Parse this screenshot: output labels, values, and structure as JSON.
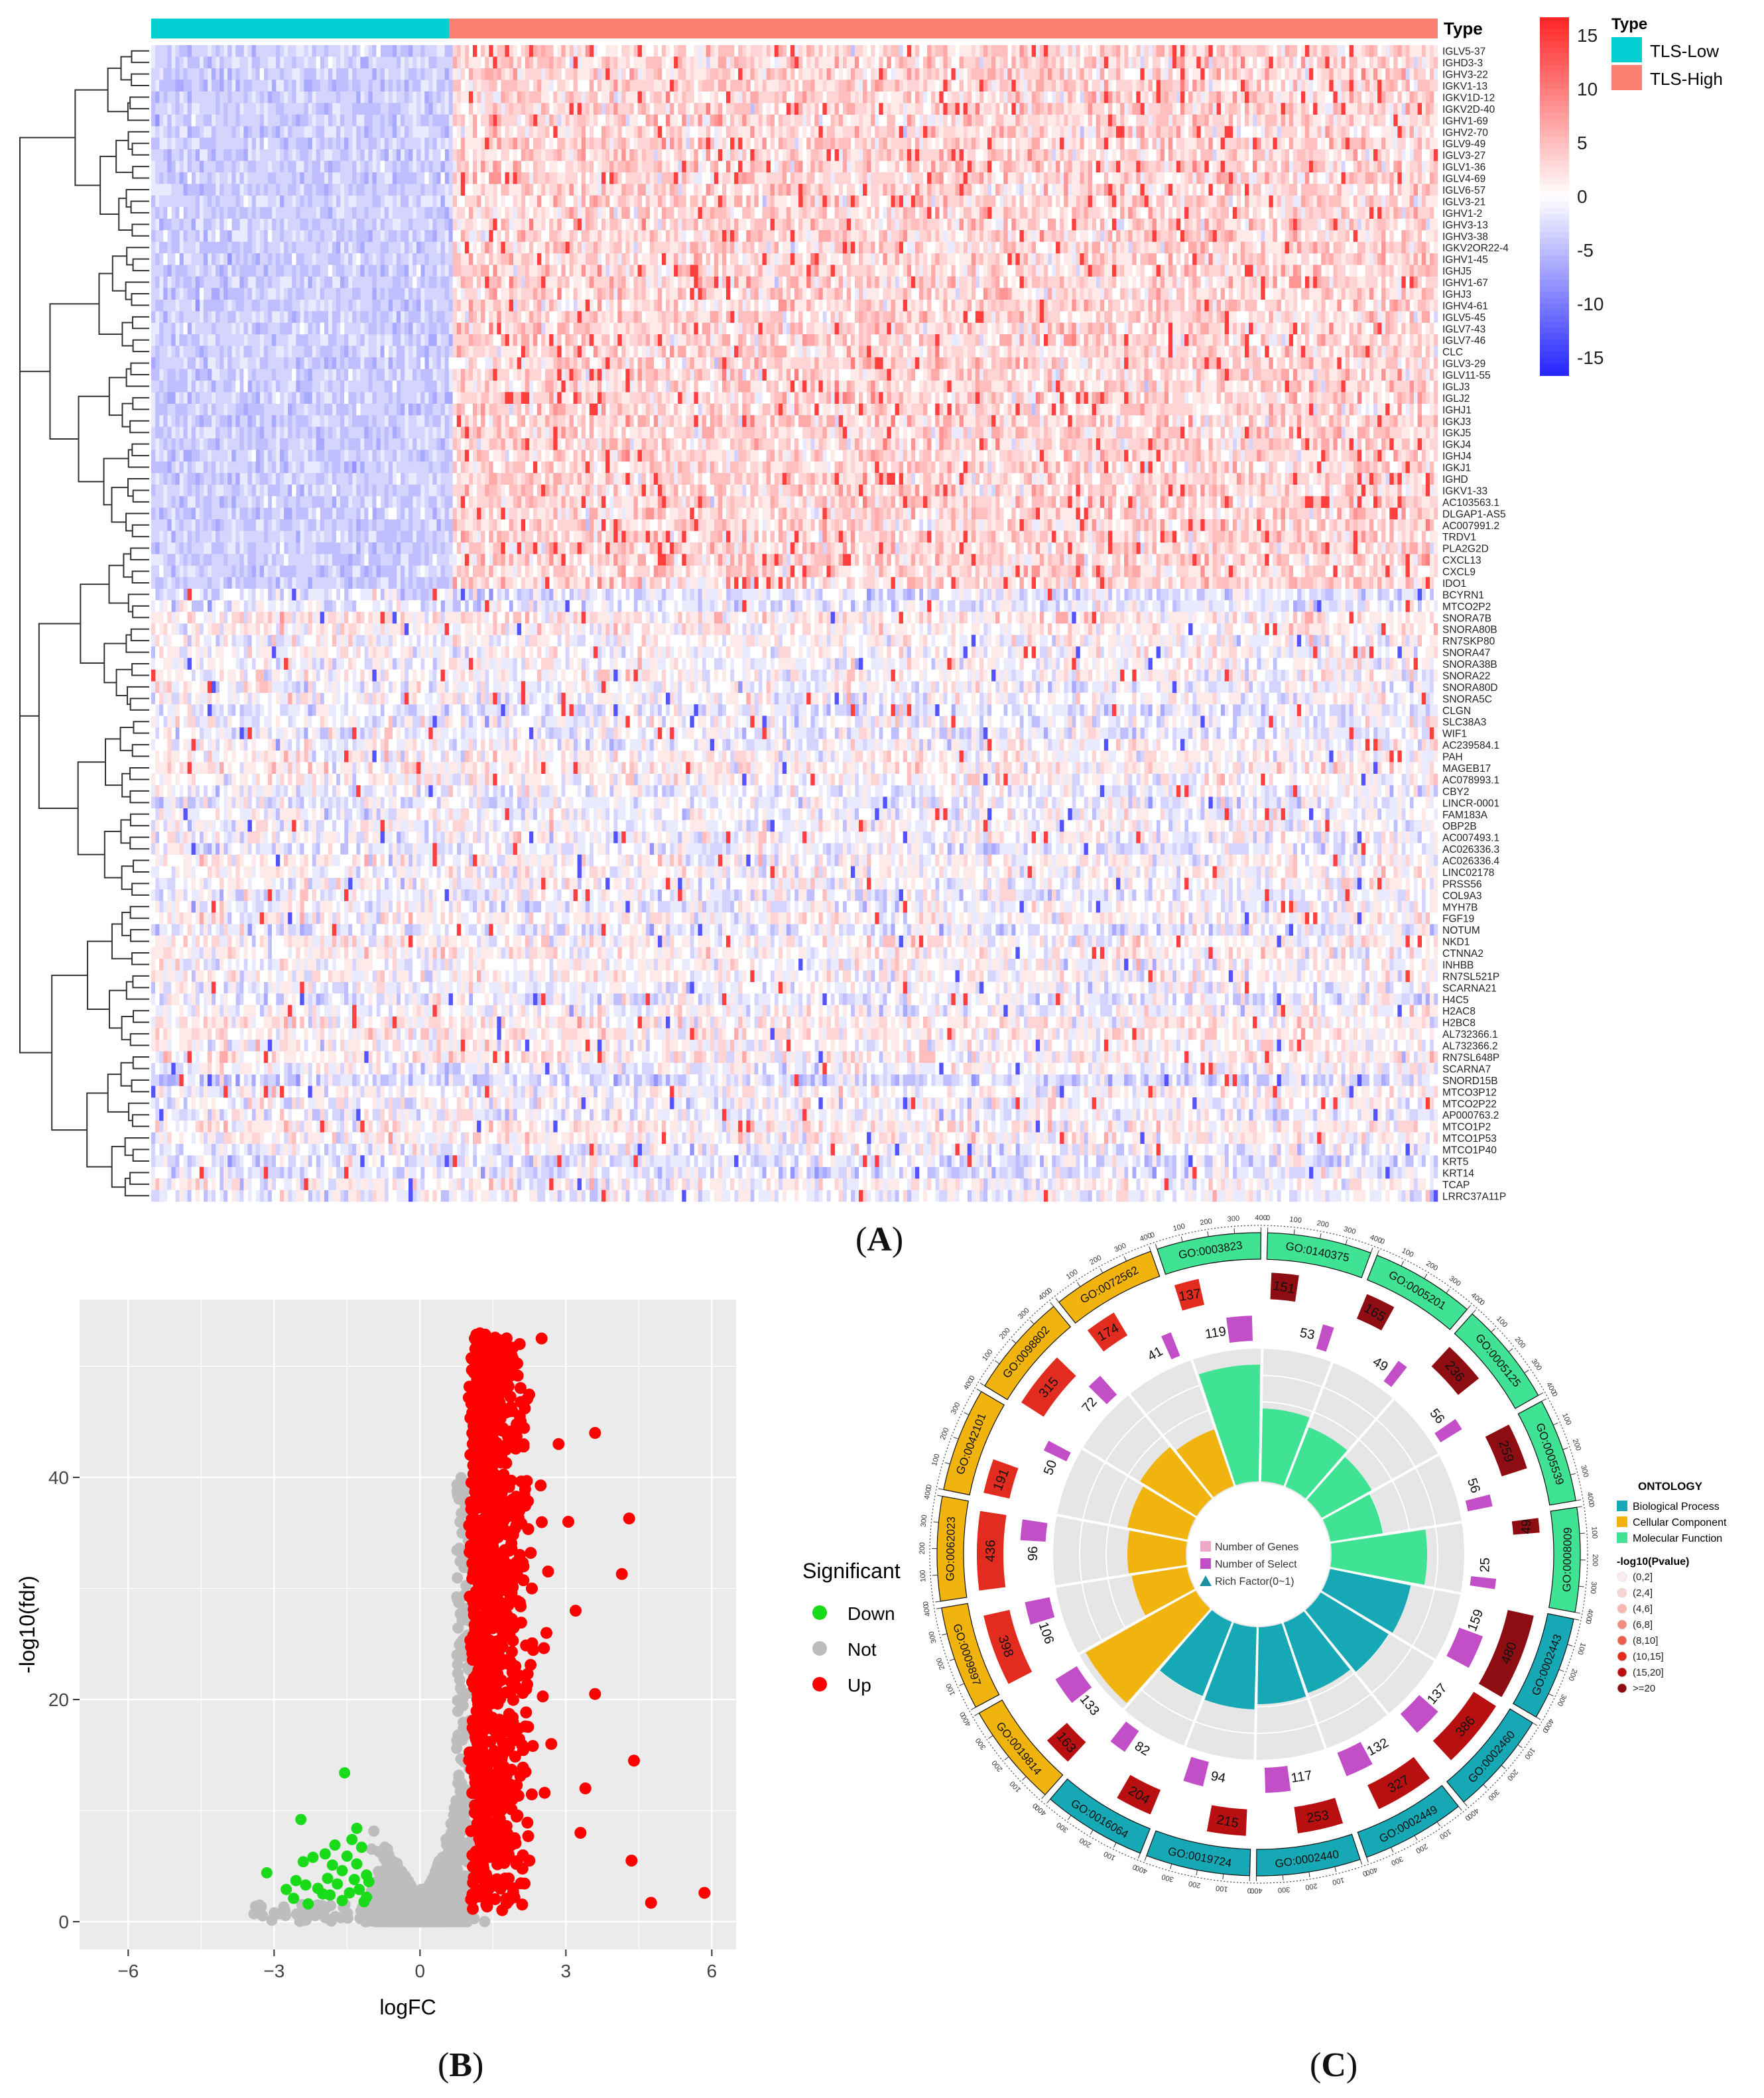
{
  "panels": {
    "a": {
      "label": "A"
    },
    "b": {
      "label": "B"
    },
    "c": {
      "label": "C"
    }
  },
  "chart_data": [
    {
      "id": "heatmap",
      "type": "heatmap",
      "title": "",
      "annotation_title": "Type",
      "legend_title": "Type",
      "groups": [
        {
          "name": "TLS-Low",
          "color": "#00CED1",
          "n_samples": 90
        },
        {
          "name": "TLS-High",
          "color": "#FA8072",
          "n_samples": 300
        }
      ],
      "color_scale": {
        "min": -15,
        "max": 15,
        "low": "#0000FF",
        "mid": "#FFFFFF",
        "high": "#FF0000",
        "ticks": [
          "15",
          "10",
          "5",
          "0",
          "-5",
          "-10",
          "-15"
        ]
      },
      "genes": [
        "IGLV5-37",
        "IGHD3-3",
        "IGHV3-22",
        "IGKV1-13",
        "IGKV1D-12",
        "IGKV2D-40",
        "IGHV1-69",
        "IGHV2-70",
        "IGLV9-49",
        "IGLV3-27",
        "IGLV1-36",
        "IGLV4-69",
        "IGLV6-57",
        "IGLV3-21",
        "IGHV1-2",
        "IGHV3-13",
        "IGHV3-38",
        "IGKV2OR22-4",
        "IGHV1-45",
        "IGHJ5",
        "IGHV1-67",
        "IGHJ3",
        "IGHV4-61",
        "IGLV5-45",
        "IGLV7-43",
        "IGLV7-46",
        "CLC",
        "IGLV3-29",
        "IGLV11-55",
        "IGLJ3",
        "IGLJ2",
        "IGHJ1",
        "IGKJ3",
        "IGKJ5",
        "IGKJ4",
        "IGHJ4",
        "IGKJ1",
        "IGHD",
        "IGKV1-33",
        "AC103563.1",
        "DLGAP1-AS5",
        "AC007991.2",
        "TRDV1",
        "PLA2G2D",
        "CXCL13",
        "CXCL9",
        "IDO1",
        "BCYRN1",
        "MTCO2P2",
        "SNORA7B",
        "SNORA80B",
        "RN7SKP80",
        "SNORA47",
        "SNORA38B",
        "SNORA22",
        "SNORA80D",
        "SNORA5C",
        "CLGN",
        "SLC38A3",
        "WIF1",
        "AC239584.1",
        "PAH",
        "MAGEB17",
        "AC078993.1",
        "CBY2",
        "LINCR-0001",
        "FAM183A",
        "OBP2B",
        "AC007493.1",
        "AC026336.3",
        "AC026336.4",
        "LINC02178",
        "PRSS56",
        "COL9A3",
        "MYH7B",
        "FGF19",
        "NOTUM",
        "NKD1",
        "CTNNA2",
        "INHBB",
        "RN7SL521P",
        "SCARNA21",
        "H4C5",
        "H2AC8",
        "H2BC8",
        "AL732366.1",
        "AL732366.2",
        "RN7SL648P",
        "SCARNA7",
        "SNORD15B",
        "MTCO3P12",
        "MTCO2P22",
        "AP000763.2",
        "MTCO1P2",
        "MTCO1P53",
        "MTCO1P40",
        "KRT5",
        "KRT14",
        "TCAP",
        "LRRC37A11P"
      ]
    },
    {
      "id": "volcano",
      "type": "scatter",
      "title": "",
      "xlabel": "logFC",
      "ylabel": "-log10(fdr)",
      "xlim": [
        -7,
        6.5
      ],
      "ylim": [
        -2.5,
        56
      ],
      "xticks": [
        -6,
        -3,
        0,
        3,
        6
      ],
      "yticks": [
        0,
        20,
        40
      ],
      "legend_title": "Significant",
      "legend_position": "right",
      "series": [
        {
          "name": "Down",
          "color": "#1ADB1A",
          "points": [
            [
              -3.15,
              4.4
            ],
            [
              -2.4,
              5.4
            ],
            [
              -2.45,
              9.2
            ],
            [
              -1.55,
              13.4
            ],
            [
              -1.3,
              8.4
            ],
            [
              -2.3,
              1.6
            ],
            [
              -2.6,
              2.1
            ],
            [
              -2.1,
              3.0
            ],
            [
              -1.9,
              3.9
            ],
            [
              -1.8,
              5.1
            ],
            [
              -1.7,
              3.4
            ],
            [
              -1.5,
              5.9
            ],
            [
              -1.35,
              3.8
            ],
            [
              -1.2,
              6.7
            ],
            [
              -1.1,
              4.2
            ],
            [
              -2.2,
              5.8
            ],
            [
              -2.0,
              2.5
            ],
            [
              -1.6,
              1.9
            ],
            [
              -1.45,
              2.6
            ],
            [
              -1.25,
              2.9
            ],
            [
              -1.15,
              1.8
            ],
            [
              -2.35,
              3.3
            ],
            [
              -1.95,
              6.1
            ],
            [
              -1.75,
              6.9
            ],
            [
              -1.4,
              7.4
            ],
            [
              -1.1,
              2.2
            ],
            [
              -1.6,
              4.6
            ],
            [
              -1.85,
              2.4
            ],
            [
              -2.55,
              3.7
            ],
            [
              -1.3,
              5.2
            ],
            [
              -1.05,
              3.6
            ],
            [
              -2.75,
              2.9
            ]
          ]
        },
        {
          "name": "Not",
          "color": "#BDBDBD"
        },
        {
          "name": "Up",
          "color": "#FF0000",
          "points": [
            [
              2.5,
              52.5
            ],
            [
              2.05,
              52.0
            ],
            [
              3.6,
              44.0
            ],
            [
              4.3,
              36.3
            ],
            [
              4.15,
              31.3
            ],
            [
              4.4,
              14.5
            ],
            [
              4.35,
              5.5
            ],
            [
              4.75,
              1.7
            ],
            [
              5.85,
              2.6
            ],
            [
              3.6,
              20.5
            ],
            [
              3.4,
              12.0
            ],
            [
              3.2,
              28.0
            ],
            [
              3.05,
              36.0
            ],
            [
              2.85,
              43.0
            ],
            [
              2.7,
              16.0
            ],
            [
              2.25,
              5.5
            ],
            [
              1.65,
              48.5
            ],
            [
              1.25,
              22.0
            ],
            [
              1.05,
              2.0
            ],
            [
              1.9,
              38.0
            ],
            [
              2.3,
              30.0
            ],
            [
              1.55,
              33.0
            ],
            [
              2.6,
              26.0
            ],
            [
              3.3,
              8.0
            ]
          ]
        }
      ]
    },
    {
      "id": "go-circos",
      "type": "pie",
      "title": "",
      "legend_ontology_title": "ONTOLOGY",
      "ontology_categories": [
        {
          "name": "Biological Process",
          "color": "#16A8B4"
        },
        {
          "name": "Cellular Component",
          "color": "#F1B40E"
        },
        {
          "name": "Molecular Function",
          "color": "#3FE393"
        }
      ],
      "legend_pvalue_title": "-log10(Pvalue)",
      "pvalue_bins": [
        "(0,2]",
        "(2,4]",
        "(4,6]",
        "(6,8]",
        "(8,10]",
        "(10,15]",
        "(15,20]",
        ">=20"
      ],
      "pvalue_colors": [
        "#FBEDED",
        "#F6D4D2",
        "#F5B7AF",
        "#F08C80",
        "#EB5F50",
        "#E22C20",
        "#B80F10",
        "#8E0D12"
      ],
      "inner_legend": [
        "Number of Genes",
        "Number of Select",
        "Rich Factor(0~1)"
      ],
      "outer_ticks": [
        "0",
        "100",
        "200",
        "300",
        "400"
      ],
      "terms": [
        {
          "id": "GO:0140375",
          "ontology": "Molecular Function",
          "number_of_genes": "151",
          "number_of_select": "53",
          "rich_factor": 0.55
        },
        {
          "id": "GO:0005201",
          "ontology": "Molecular Function",
          "number_of_genes": "165",
          "number_of_select": "49",
          "rich_factor": 0.48
        },
        {
          "id": "GO:0005125",
          "ontology": "Molecular Function",
          "number_of_genes": "236",
          "number_of_select": "56",
          "rich_factor": 0.43
        },
        {
          "id": "GO:0005539",
          "ontology": "Molecular Function",
          "number_of_genes": "259",
          "number_of_select": "56",
          "rich_factor": 0.4
        },
        {
          "id": "GO:0008009",
          "ontology": "Molecular Function",
          "number_of_genes": "49",
          "number_of_select": "25",
          "rich_factor": 0.72
        },
        {
          "id": "GO:0002443",
          "ontology": "Biological Process",
          "number_of_genes": "480",
          "number_of_select": "159",
          "rich_factor": 0.62
        },
        {
          "id": "GO:0002460",
          "ontology": "Biological Process",
          "number_of_genes": "386",
          "number_of_select": "137",
          "rich_factor": 0.6
        },
        {
          "id": "GO:0002449",
          "ontology": "Biological Process",
          "number_of_genes": "327",
          "number_of_select": "132",
          "rich_factor": 0.56
        },
        {
          "id": "GO:0002440",
          "ontology": "Biological Process",
          "number_of_genes": "253",
          "number_of_select": "117",
          "rich_factor": 0.58
        },
        {
          "id": "GO:0019724",
          "ontology": "Biological Process",
          "number_of_genes": "215",
          "number_of_select": "94",
          "rich_factor": 0.62
        },
        {
          "id": "GO:0016064",
          "ontology": "Biological Process",
          "number_of_genes": "204",
          "number_of_select": "82",
          "rich_factor": 0.6
        },
        {
          "id": "GO:0019814",
          "ontology": "Cellular Component",
          "number_of_genes": "163",
          "number_of_select": "133",
          "rich_factor": 0.95
        },
        {
          "id": "GO:0009897",
          "ontology": "Cellular Component",
          "number_of_genes": "398",
          "number_of_select": "106",
          "rich_factor": 0.42
        },
        {
          "id": "GO:0062023",
          "ontology": "Cellular Component",
          "number_of_genes": "436",
          "number_of_select": "96",
          "rich_factor": 0.44
        },
        {
          "id": "GO:0042101",
          "ontology": "Cellular Component",
          "number_of_genes": "191",
          "number_of_select": "50",
          "rich_factor": 0.46
        },
        {
          "id": "GO:0098802",
          "ontology": "Cellular Component",
          "number_of_genes": "315",
          "number_of_select": "72",
          "rich_factor": 0.5
        },
        {
          "id": "GO:0072562",
          "ontology": "Cellular Component",
          "number_of_genes": "174",
          "number_of_select": "41",
          "rich_factor": 0.45
        },
        {
          "id": "GO:0003823",
          "ontology": "Molecular Function",
          "number_of_genes": "137",
          "number_of_select": "119",
          "rich_factor": 0.88
        }
      ]
    }
  ]
}
